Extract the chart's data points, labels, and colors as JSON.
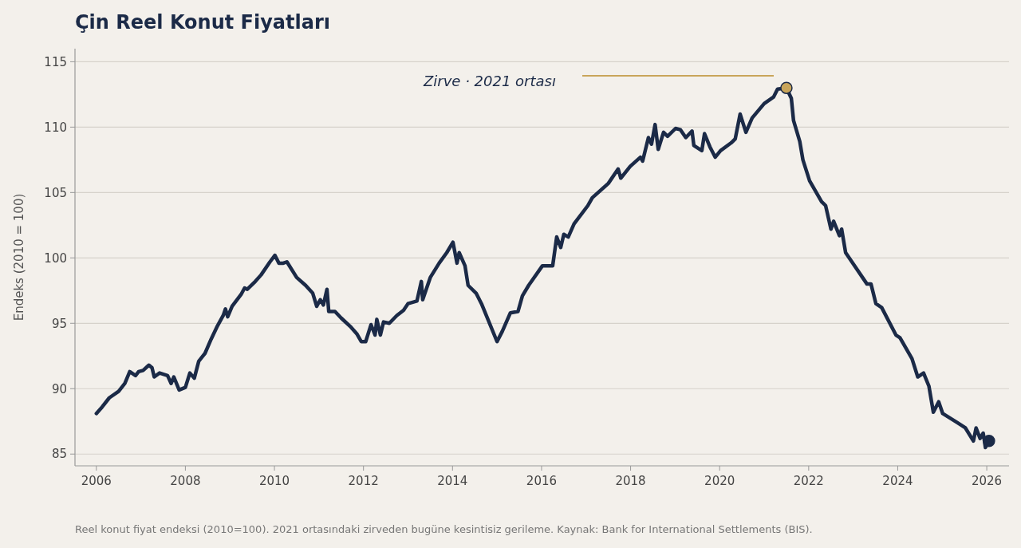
{
  "chart_data": {
    "type": "line",
    "title": "Çin Reel Konut Fiyatları",
    "ylabel": "Endeks (2010 = 100)",
    "xlim": [
      2005.52,
      2026.5
    ],
    "ylim": [
      84.1,
      116
    ],
    "xticks": [
      2006,
      2008,
      2010,
      2012,
      2014,
      2016,
      2018,
      2020,
      2022,
      2024,
      2026
    ],
    "yticks": [
      85,
      90,
      95,
      100,
      105,
      110,
      115
    ],
    "grid": "y",
    "annotations": [
      "Zirve · 2021 ortası",
      "Reel konut fiyat endeksi (2010=100). 2021 ortasındaki zirveden bugüne kesintisiz gerileme.  Kaynak: Bank for International Settlements (BIS)."
    ],
    "series": [
      {
        "color": "#1b2a47",
        "marker": "none",
        "line_style": "solid",
        "x": [
          2006.0,
          2006.13,
          2006.29,
          2006.5,
          2006.64,
          2006.75,
          2006.88,
          2006.95,
          2007.05,
          2007.18,
          2007.25,
          2007.3,
          2007.42,
          2007.6,
          2007.68,
          2007.74,
          2007.86,
          2008.0,
          2008.1,
          2008.2,
          2008.3,
          2008.44,
          2008.58,
          2008.72,
          2008.85,
          2008.9,
          2008.95,
          2009.05,
          2009.25,
          2009.33,
          2009.39,
          2009.57,
          2009.7,
          2009.9,
          2010.01,
          2010.1,
          2010.2,
          2010.28,
          2010.5,
          2010.7,
          2010.86,
          2010.95,
          2011.03,
          2011.1,
          2011.18,
          2011.22,
          2011.36,
          2011.5,
          2011.72,
          2011.85,
          2011.95,
          2012.05,
          2012.17,
          2012.26,
          2012.3,
          2012.38,
          2012.45,
          2012.58,
          2012.75,
          2012.9,
          2013.0,
          2013.2,
          2013.3,
          2013.33,
          2013.5,
          2013.7,
          2013.87,
          2014.01,
          2014.1,
          2014.15,
          2014.28,
          2014.35,
          2014.53,
          2014.65,
          2015.0,
          2015.12,
          2015.3,
          2015.47,
          2015.57,
          2015.71,
          2016.02,
          2016.25,
          2016.34,
          2016.43,
          2016.5,
          2016.6,
          2016.73,
          2017.04,
          2017.14,
          2017.5,
          2017.72,
          2017.78,
          2017.99,
          2018.22,
          2018.27,
          2018.4,
          2018.47,
          2018.55,
          2018.62,
          2018.74,
          2018.83,
          2019.01,
          2019.12,
          2019.24,
          2019.38,
          2019.42,
          2019.6,
          2019.66,
          2019.78,
          2019.9,
          2020.02,
          2020.26,
          2020.35,
          2020.46,
          2020.59,
          2020.73,
          2021.0,
          2021.21,
          2021.3,
          2021.5,
          2021.61,
          2021.66,
          2021.8,
          2021.87,
          2022.02,
          2022.29,
          2022.38,
          2022.5,
          2022.56,
          2022.69,
          2022.74,
          2022.83,
          2022.97,
          2023.31,
          2023.4,
          2023.51,
          2023.64,
          2023.96,
          2024.05,
          2024.32,
          2024.45,
          2024.58,
          2024.7,
          2024.8,
          2024.92,
          2025.01,
          2025.34,
          2025.52,
          2025.7,
          2025.76,
          2025.85,
          2025.92,
          2025.97,
          2026.05
        ],
        "values": [
          88.1,
          88.6,
          89.3,
          89.8,
          90.4,
          91.3,
          91.0,
          91.3,
          91.4,
          91.8,
          91.6,
          90.9,
          91.2,
          91.0,
          90.4,
          90.9,
          89.9,
          90.1,
          91.2,
          90.8,
          92.1,
          92.7,
          93.8,
          94.8,
          95.6,
          96.1,
          95.5,
          96.3,
          97.2,
          97.7,
          97.6,
          98.2,
          98.7,
          99.7,
          100.2,
          99.6,
          99.6,
          99.7,
          98.5,
          97.9,
          97.3,
          96.3,
          96.8,
          96.4,
          97.6,
          95.9,
          95.9,
          95.4,
          94.7,
          94.2,
          93.6,
          93.6,
          94.9,
          94.1,
          95.3,
          94.1,
          95.1,
          95.0,
          95.6,
          96.0,
          96.5,
          96.7,
          98.2,
          96.8,
          98.5,
          99.6,
          100.4,
          101.2,
          99.6,
          100.4,
          99.4,
          97.9,
          97.3,
          96.5,
          93.6,
          94.4,
          95.8,
          95.9,
          97.1,
          97.9,
          99.4,
          99.4,
          101.6,
          100.8,
          101.8,
          101.6,
          102.6,
          104.0,
          104.6,
          105.7,
          106.8,
          106.1,
          107.0,
          107.7,
          107.4,
          109.2,
          108.7,
          110.2,
          108.3,
          109.6,
          109.3,
          109.9,
          109.8,
          109.2,
          109.7,
          108.6,
          108.2,
          109.5,
          108.5,
          107.7,
          108.2,
          108.8,
          109.1,
          111.0,
          109.6,
          110.7,
          111.8,
          112.3,
          112.9,
          113.0,
          112.2,
          110.5,
          108.9,
          107.5,
          105.9,
          104.3,
          104.0,
          102.2,
          102.8,
          101.7,
          102.2,
          100.4,
          99.7,
          98.0,
          98.0,
          96.5,
          96.2,
          94.1,
          93.9,
          92.3,
          90.9,
          91.2,
          90.2,
          88.2,
          89.0,
          88.1,
          87.4,
          87.0,
          86.0,
          87.0,
          86.2,
          86.6,
          85.5,
          86.0
        ]
      },
      {
        "type": "scatter",
        "color": "#c9a55a",
        "marker": "circle",
        "x": [
          2021.5
        ],
        "values": [
          113.0
        ]
      },
      {
        "type": "scatter",
        "color": "#1b2a47",
        "marker": "circle",
        "x": [
          2026.05
        ],
        "values": [
          86.0
        ]
      }
    ]
  }
}
